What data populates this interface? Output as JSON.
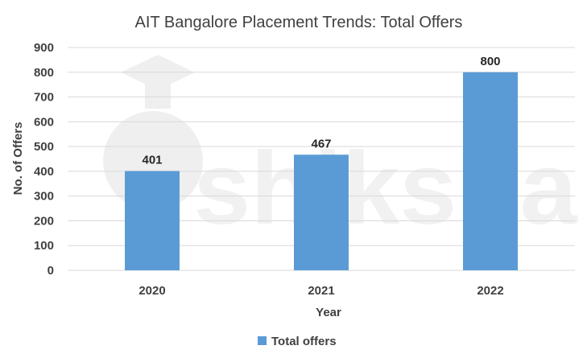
{
  "chart_data": {
    "type": "bar",
    "title": "AIT Bangalore Placement Trends: Total Offers",
    "categories": [
      "2020",
      "2021",
      "2022"
    ],
    "series": [
      {
        "name": "Total offers",
        "values": [
          401,
          467,
          800
        ]
      }
    ],
    "xlabel": "Year",
    "ylabel": "No. of  Offers",
    "ylim": [
      0,
      900
    ],
    "yticks": [
      0,
      100,
      200,
      300,
      400,
      500,
      600,
      700,
      800,
      900
    ],
    "grid": true,
    "legend_position": "bottom",
    "colors": {
      "bar": "#5B9BD5",
      "grid": "#D9D9D9",
      "text": "#404040"
    }
  },
  "watermark": {
    "text": "shiksha"
  }
}
